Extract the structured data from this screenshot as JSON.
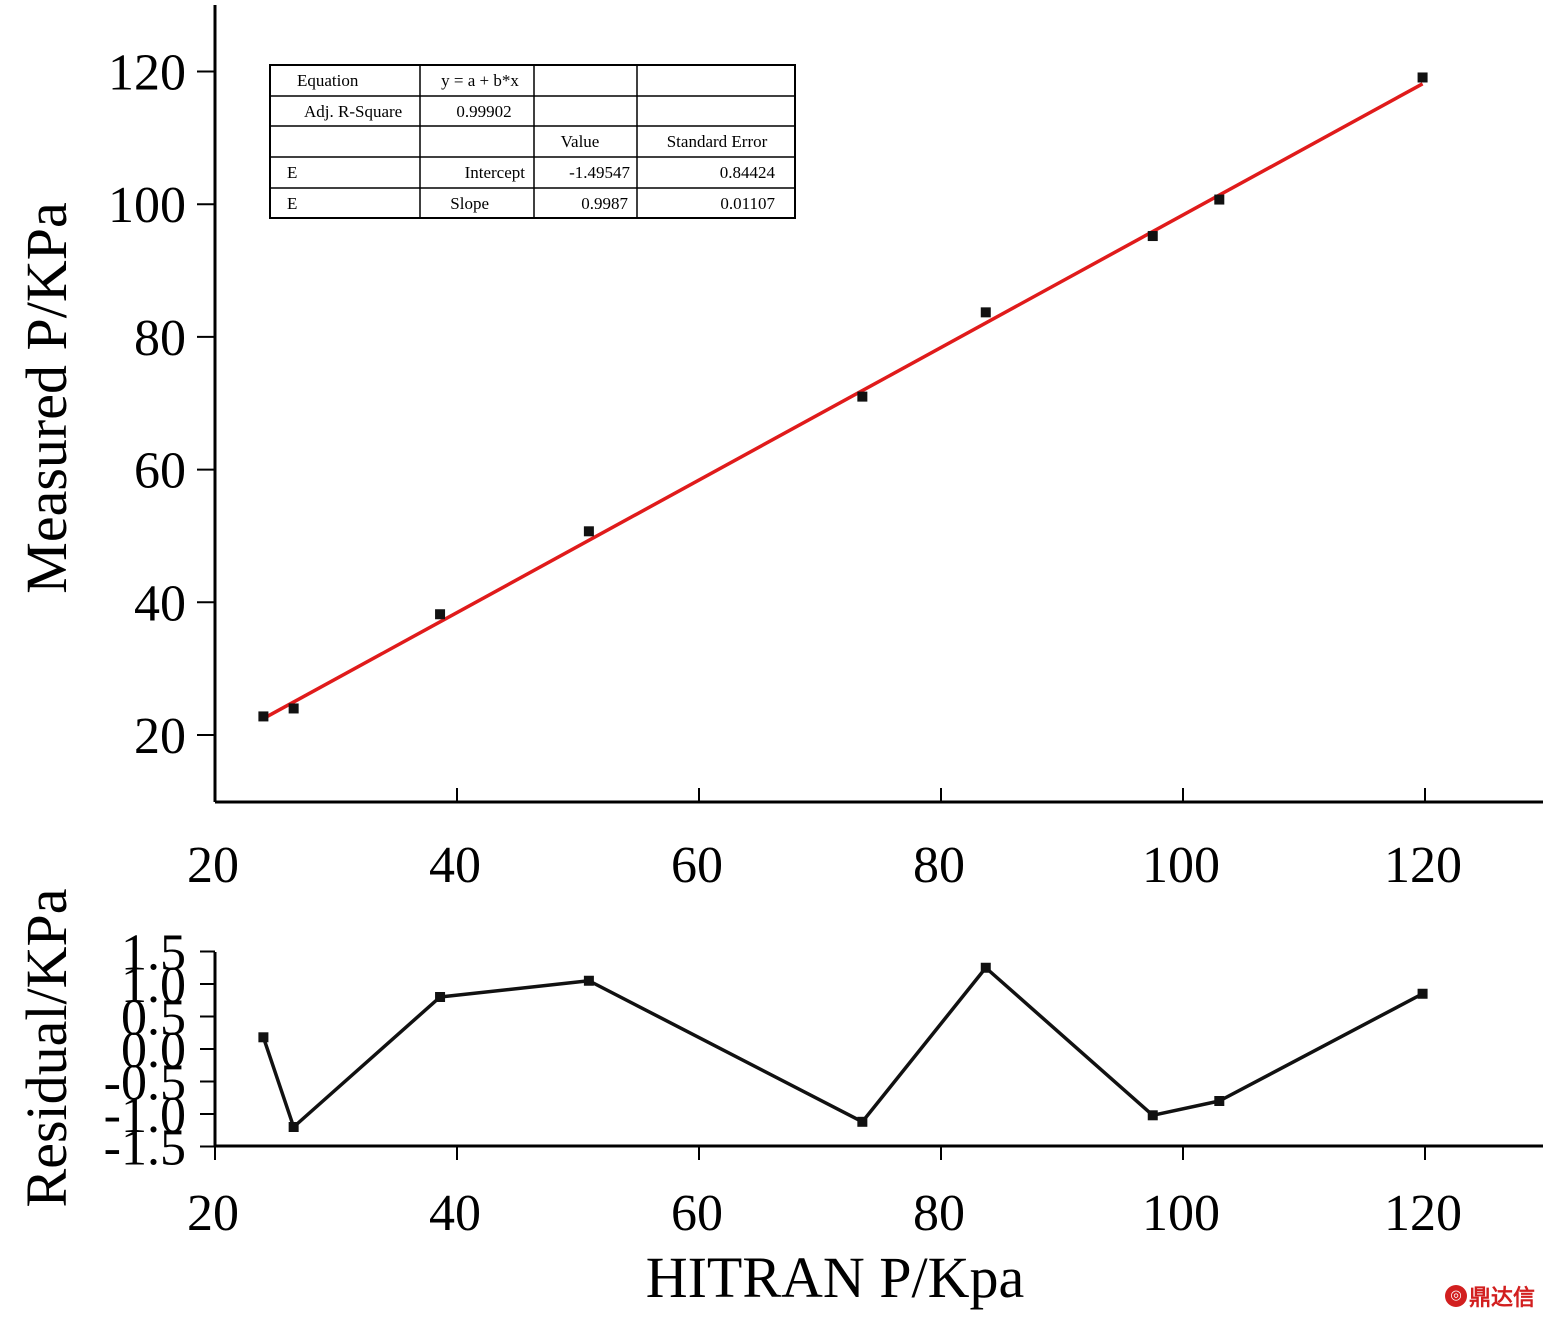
{
  "chart_data": [
    {
      "type": "scatter",
      "xlabel": "",
      "ylabel": "Measured P/KPa",
      "xlim": [
        20,
        130
      ],
      "ylim": [
        10,
        130
      ],
      "xticks": [
        "20",
        "40",
        "60",
        "80",
        "100",
        "120"
      ],
      "yticks": [
        "20",
        "40",
        "60",
        "80",
        "100",
        "120"
      ],
      "points": {
        "x": [
          24.0,
          26.5,
          38.6,
          50.9,
          73.5,
          83.7,
          97.5,
          103.0,
          119.8
        ],
        "y": [
          22.8,
          24.0,
          38.2,
          50.7,
          71.0,
          83.7,
          95.2,
          100.7,
          119.1
        ]
      },
      "fit_line": {
        "intercept": -1.49547,
        "slope": 0.9987,
        "x_range": [
          24.0,
          119.8
        ],
        "color": "#e01b1b"
      },
      "fit_table": {
        "rows": [
          [
            "Equation",
            "y = a + b*x",
            "",
            ""
          ],
          [
            "Adj. R-Square",
            "0.99902",
            "",
            ""
          ],
          [
            "",
            "",
            "Value",
            "Standard Error"
          ],
          [
            "E",
            "Intercept",
            "-1.49547",
            "0.84424"
          ],
          [
            "E",
            "Slope",
            "0.9987",
            "0.01107"
          ]
        ]
      },
      "grid": false
    },
    {
      "type": "line",
      "xlabel": "HITRAN P/Kpa",
      "ylabel": "Residual/KPa",
      "xlim": [
        20,
        130
      ],
      "ylim": [
        -1.5,
        1.5
      ],
      "xticks": [
        "20",
        "40",
        "60",
        "80",
        "100",
        "120"
      ],
      "yticks": [
        "-1.5",
        "-1.0",
        "-0.5",
        "0.0",
        "0.5",
        "1.0",
        "1.5"
      ],
      "series": [
        {
          "x": [
            24.0,
            26.5,
            38.6,
            50.9,
            73.5,
            83.7,
            97.5,
            103.0,
            119.8
          ],
          "values": [
            0.18,
            -1.2,
            0.8,
            1.05,
            -1.12,
            1.25,
            -1.02,
            -0.8,
            0.85
          ]
        }
      ],
      "grid": false
    }
  ],
  "watermark": {
    "text": "鼎达信",
    "icon": "logo-icon",
    "color": "#d21f1f"
  }
}
